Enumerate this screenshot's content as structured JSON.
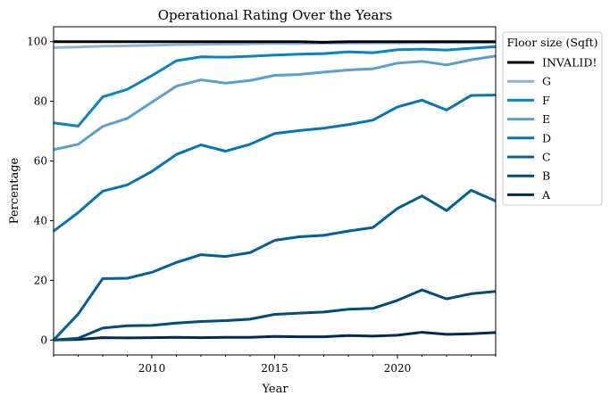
{
  "chart_data": {
    "type": "line",
    "title": "Operational Rating Over the Years",
    "xlabel": "Year",
    "ylabel": "Percentage",
    "xlim": [
      2006,
      2024
    ],
    "ylim": [
      -5,
      105
    ],
    "xticks": [
      2010,
      2015,
      2020
    ],
    "yticks": [
      0,
      20,
      40,
      60,
      80,
      100
    ],
    "x": [
      2006,
      2007,
      2008,
      2009,
      2010,
      2011,
      2012,
      2013,
      2014,
      2015,
      2016,
      2017,
      2018,
      2019,
      2020,
      2021,
      2022,
      2023,
      2024
    ],
    "legend": {
      "title": "Floor size (Sqft)",
      "placement": "outside right, top"
    },
    "grid": false,
    "series": [
      {
        "name": "INVALID!",
        "color": "#000000",
        "values": [
          100,
          100,
          100,
          100,
          100,
          100,
          100,
          100,
          100,
          100,
          100,
          99.8,
          100,
          100,
          100,
          100,
          100,
          100,
          100
        ]
      },
      {
        "name": "G",
        "color": "#8db3d9",
        "values": [
          98,
          98.2,
          98.5,
          98.6,
          98.8,
          99,
          99.1,
          99.2,
          99.3,
          99.4,
          99.4,
          99.5,
          99.5,
          99.6,
          99.6,
          99.7,
          99.7,
          99.7,
          99.8
        ]
      },
      {
        "name": "F",
        "color": "#0a84c6",
        "values": [
          72.8,
          71.7,
          81.5,
          84.0,
          88.6,
          93.6,
          94.9,
          94.8,
          95.1,
          95.5,
          95.8,
          96.0,
          96.6,
          96.3,
          97.3,
          97.5,
          97.2,
          97.8,
          98.3
        ]
      },
      {
        "name": "E",
        "color": "#5b9fd1",
        "values": [
          63.8,
          65.6,
          71.6,
          74.3,
          79.7,
          85.1,
          87.2,
          86.1,
          87.0,
          88.7,
          89.0,
          89.8,
          90.5,
          90.9,
          92.8,
          93.4,
          92.2,
          93.9,
          95.2
        ]
      },
      {
        "name": "D",
        "color": "#0774b4",
        "values": [
          36.5,
          42.7,
          49.9,
          52.0,
          56.5,
          62.2,
          65.4,
          63.3,
          65.6,
          69.2,
          70.2,
          71.0,
          72.2,
          73.7,
          78.1,
          80.4,
          77.1,
          82.0,
          82.1
        ]
      },
      {
        "name": "C",
        "color": "#045f94",
        "values": [
          0,
          8.7,
          20.6,
          20.7,
          22.7,
          26.0,
          28.6,
          28.0,
          29.3,
          33.4,
          34.6,
          35.1,
          36.5,
          37.7,
          44.1,
          48.3,
          43.4,
          50.2,
          46.6
        ]
      },
      {
        "name": "B",
        "color": "#034b78",
        "values": [
          0,
          0.6,
          4.0,
          4.8,
          4.9,
          5.7,
          6.2,
          6.5,
          7.0,
          8.6,
          9.0,
          9.4,
          10.3,
          10.6,
          13.3,
          16.8,
          13.8,
          15.5,
          16.3
        ]
      },
      {
        "name": "A",
        "color": "#012b52",
        "values": [
          0,
          0.2,
          0.8,
          0.7,
          0.8,
          0.9,
          0.8,
          0.9,
          0.9,
          1.2,
          1.1,
          1.1,
          1.5,
          1.3,
          1.6,
          2.6,
          1.9,
          2.1,
          2.5
        ]
      }
    ]
  }
}
